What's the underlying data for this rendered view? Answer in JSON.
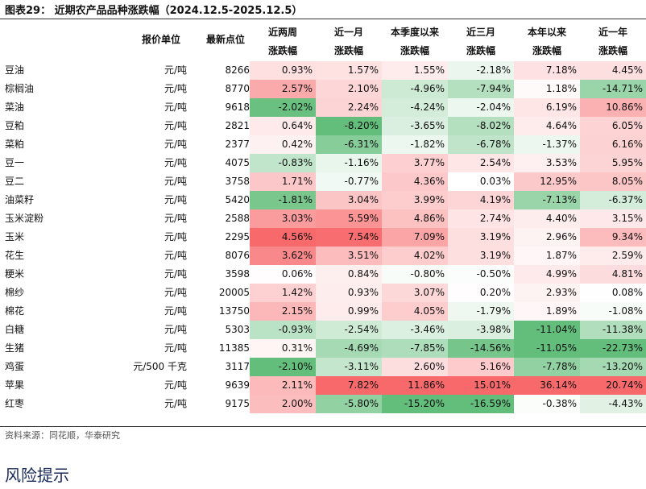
{
  "title": "图表29：  近期农产品品种涨跌幅（2024.12.5-2025.12.5）",
  "headers": {
    "unit": "报价单位",
    "price": "最新点位",
    "periods": [
      {
        "line1": "近两周",
        "line2": "涨跌幅"
      },
      {
        "line1": "近一月",
        "line2": "涨跌幅"
      },
      {
        "line1": "本季度以来",
        "line2": "涨跌幅"
      },
      {
        "line1": "近三月",
        "line2": "涨跌幅"
      },
      {
        "line1": "本年以来",
        "line2": "涨跌幅"
      },
      {
        "line1": "近一年",
        "line2": "涨跌幅"
      }
    ]
  },
  "rows": [
    {
      "name": "豆油",
      "unit": "元/吨",
      "price": "8266",
      "v": [
        "0.93%",
        "1.57%",
        "1.55%",
        "-2.18%",
        "7.18%",
        "4.45%"
      ]
    },
    {
      "name": "棕榈油",
      "unit": "元/吨",
      "price": "8770",
      "v": [
        "2.57%",
        "2.10%",
        "-4.96%",
        "-7.94%",
        "1.18%",
        "-14.71%"
      ]
    },
    {
      "name": "菜油",
      "unit": "元/吨",
      "price": "9618",
      "v": [
        "-2.02%",
        "2.24%",
        "-4.24%",
        "-2.04%",
        "6.19%",
        "10.86%"
      ]
    },
    {
      "name": "豆粕",
      "unit": "元/吨",
      "price": "2821",
      "v": [
        "0.64%",
        "-8.20%",
        "-3.65%",
        "-8.02%",
        "4.64%",
        "6.05%"
      ]
    },
    {
      "name": "菜粕",
      "unit": "元/吨",
      "price": "2377",
      "v": [
        "0.42%",
        "-6.31%",
        "-1.82%",
        "-6.78%",
        "-1.37%",
        "6.16%"
      ]
    },
    {
      "name": "豆一",
      "unit": "元/吨",
      "price": "4075",
      "v": [
        "-0.83%",
        "-1.16%",
        "3.77%",
        "2.54%",
        "3.53%",
        "5.95%"
      ]
    },
    {
      "name": "豆二",
      "unit": "元/吨",
      "price": "3758",
      "v": [
        "1.71%",
        "-0.77%",
        "4.36%",
        "0.03%",
        "12.95%",
        "8.05%"
      ]
    },
    {
      "name": "油菜籽",
      "unit": "元/吨",
      "price": "5420",
      "v": [
        "-1.81%",
        "3.04%",
        "3.99%",
        "4.19%",
        "-7.13%",
        "-6.37%"
      ]
    },
    {
      "name": "玉米淀粉",
      "unit": "元/吨",
      "price": "2588",
      "v": [
        "3.03%",
        "5.59%",
        "4.86%",
        "2.74%",
        "4.40%",
        "3.15%"
      ]
    },
    {
      "name": "玉米",
      "unit": "元/吨",
      "price": "2295",
      "v": [
        "4.56%",
        "7.54%",
        "7.09%",
        "3.19%",
        "2.96%",
        "9.34%"
      ]
    },
    {
      "name": "花生",
      "unit": "元/吨",
      "price": "8076",
      "v": [
        "3.62%",
        "3.51%",
        "4.02%",
        "3.19%",
        "1.87%",
        "2.59%"
      ]
    },
    {
      "name": "粳米",
      "unit": "元/吨",
      "price": "3598",
      "v": [
        "0.06%",
        "0.84%",
        "-0.80%",
        "-0.50%",
        "4.99%",
        "4.81%"
      ]
    },
    {
      "name": "棉纱",
      "unit": "元/吨",
      "price": "20005",
      "v": [
        "1.42%",
        "0.93%",
        "3.07%",
        "0.20%",
        "2.93%",
        "0.08%"
      ]
    },
    {
      "name": "棉花",
      "unit": "元/吨",
      "price": "13750",
      "v": [
        "2.15%",
        "0.99%",
        "4.05%",
        "-1.79%",
        "1.89%",
        "-1.08%"
      ]
    },
    {
      "name": "白糖",
      "unit": "元/吨",
      "price": "5303",
      "v": [
        "-0.93%",
        "-2.54%",
        "-3.46%",
        "-3.98%",
        "-11.04%",
        "-11.38%"
      ]
    },
    {
      "name": "生猪",
      "unit": "元/吨",
      "price": "11385",
      "v": [
        "0.31%",
        "-4.69%",
        "-7.85%",
        "-14.56%",
        "-11.05%",
        "-22.73%"
      ]
    },
    {
      "name": "鸡蛋",
      "unit": "元/500 千克",
      "price": "3117",
      "v": [
        "-2.10%",
        "-3.11%",
        "2.60%",
        "5.16%",
        "-7.78%",
        "-13.20%"
      ]
    },
    {
      "name": "苹果",
      "unit": "元/吨",
      "price": "9639",
      "v": [
        "2.11%",
        "7.82%",
        "11.86%",
        "15.01%",
        "36.14%",
        "20.74%"
      ]
    },
    {
      "name": "红枣",
      "unit": "元/吨",
      "price": "9175",
      "v": [
        "2.00%",
        "-5.80%",
        "-15.20%",
        "-16.59%",
        "-0.38%",
        "-4.43%"
      ]
    }
  ],
  "source": "资料来源：同花顺，华泰研究",
  "section_title": "风险提示",
  "colors": {
    "positive": "#f8696b",
    "negative": "#63be7b",
    "neutral": "#ffffff"
  }
}
